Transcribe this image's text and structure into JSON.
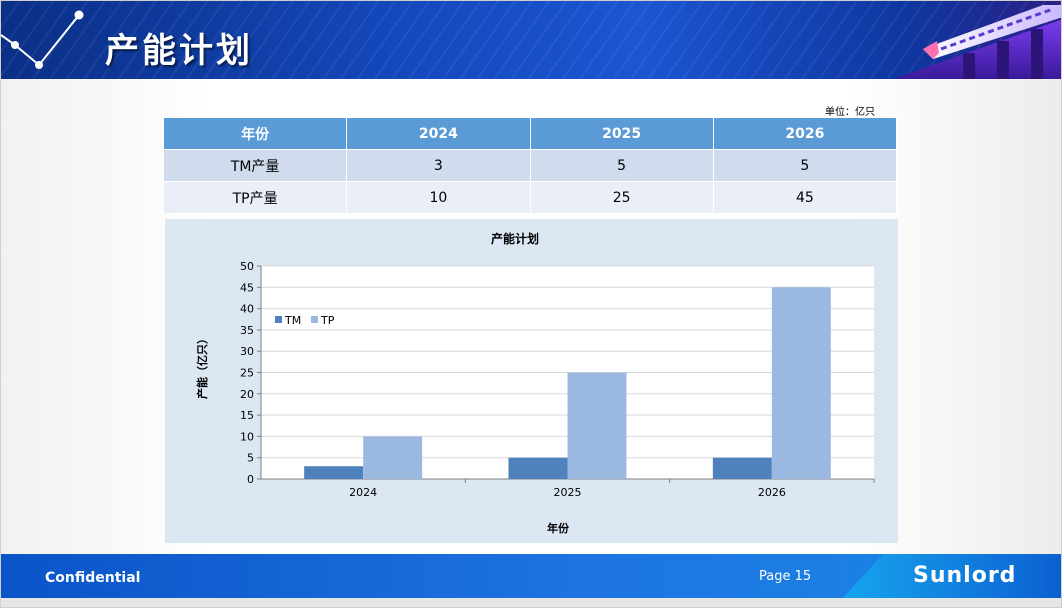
{
  "header": {
    "title": "产能计划"
  },
  "table": {
    "unit": "单位：亿只",
    "headers": [
      "年份",
      "2024",
      "2025",
      "2026"
    ],
    "rows": [
      [
        "TM产量",
        "3",
        "5",
        "5"
      ],
      [
        "TP产量",
        "10",
        "25",
        "45"
      ]
    ]
  },
  "chart_data": {
    "type": "bar",
    "title": "产能计划",
    "xlabel": "年份",
    "ylabel": "产能（亿只）",
    "categories": [
      "2024",
      "2025",
      "2026"
    ],
    "series": [
      {
        "name": "TM",
        "values": [
          3,
          5,
          5
        ],
        "color": "#4f81bd"
      },
      {
        "name": "TP",
        "values": [
          10,
          25,
          45
        ],
        "color": "#9bb9e0"
      }
    ],
    "ylim": [
      0,
      50
    ],
    "yticks": [
      0,
      5,
      10,
      15,
      20,
      25,
      30,
      35,
      40,
      45,
      50
    ],
    "grid": true,
    "legend": "left"
  },
  "footer": {
    "left_text": "Confidential",
    "page": "Page 15",
    "brand": "Sunlord"
  }
}
